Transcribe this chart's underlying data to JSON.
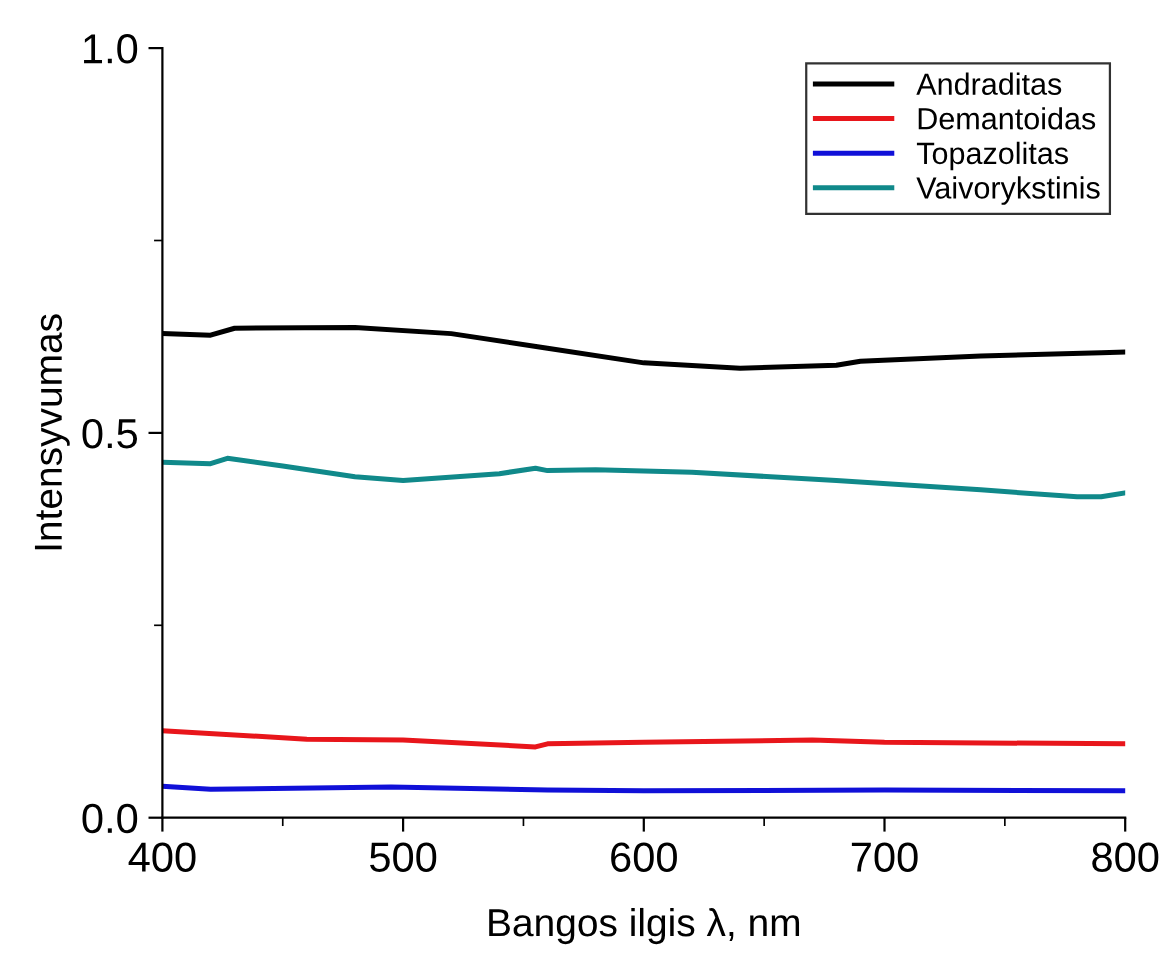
{
  "chart_data": {
    "type": "line",
    "xlabel": "Bangos ilgis λ, nm",
    "ylabel": "Intensyvumas",
    "xlim": [
      400,
      800
    ],
    "ylim": [
      0,
      1
    ],
    "xticks": [
      400,
      {
        "value": 450,
        "label": null
      },
      500,
      {
        "value": 550,
        "label": null
      },
      600,
      {
        "value": 650,
        "label": null
      },
      700,
      {
        "value": 750,
        "label": null
      },
      800
    ],
    "yticks": [
      {
        "value": 0,
        "label": "0.0"
      },
      {
        "value": 0.25,
        "label": null
      },
      0.5,
      {
        "value": 0.75,
        "label": null
      },
      {
        "value": 1,
        "label": "1.0"
      }
    ],
    "grid": false,
    "legend": "top right",
    "marker": "none",
    "line_style": "solid",
    "series": [
      {
        "name": "Andraditas",
        "color": "#000000",
        "x": [
          400,
          420,
          430,
          480,
          520,
          560,
          600,
          640,
          680,
          690,
          740,
          790,
          800
        ],
        "values": [
          0.629,
          0.627,
          0.636,
          0.637,
          0.629,
          0.61,
          0.591,
          0.584,
          0.588,
          0.593,
          0.6,
          0.604,
          0.605
        ]
      },
      {
        "name": "Demantoidas",
        "color": "#e8161b",
        "x": [
          400,
          460,
          500,
          555,
          560,
          600,
          670,
          700,
          800
        ],
        "values": [
          0.113,
          0.102,
          0.101,
          0.092,
          0.096,
          0.098,
          0.101,
          0.098,
          0.096
        ]
      },
      {
        "name": "Topazolitas",
        "color": "#1010d8",
        "x": [
          400,
          420,
          495,
          560,
          600,
          700,
          800
        ],
        "values": [
          0.041,
          0.037,
          0.04,
          0.036,
          0.035,
          0.036,
          0.035
        ]
      },
      {
        "name": "Vaivorykstinis",
        "color": "#10898a",
        "x": [
          400,
          420,
          427,
          450,
          480,
          500,
          540,
          555,
          560,
          580,
          620,
          680,
          740,
          780,
          790,
          800
        ],
        "values": [
          0.462,
          0.46,
          0.467,
          0.457,
          0.443,
          0.438,
          0.447,
          0.454,
          0.451,
          0.452,
          0.449,
          0.438,
          0.426,
          0.417,
          0.417,
          0.422
        ]
      }
    ]
  }
}
